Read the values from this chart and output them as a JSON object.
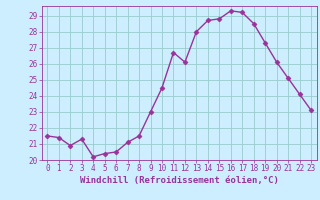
{
  "x": [
    0,
    1,
    2,
    3,
    4,
    5,
    6,
    7,
    8,
    9,
    10,
    11,
    12,
    13,
    14,
    15,
    16,
    17,
    18,
    19,
    20,
    21,
    22,
    23
  ],
  "y": [
    21.5,
    21.4,
    20.9,
    21.3,
    20.2,
    20.4,
    20.5,
    21.1,
    21.5,
    23.0,
    24.5,
    26.7,
    26.1,
    28.0,
    28.7,
    28.8,
    29.3,
    29.2,
    28.5,
    27.3,
    26.1,
    25.1,
    24.1,
    23.1
  ],
  "line_color": "#993399",
  "marker": "D",
  "marker_size": 2.5,
  "bg_color": "#cceeff",
  "grid_color": "#99cccc",
  "xlabel": "Windchill (Refroidissement éolien,°C)",
  "xlabel_color": "#993399",
  "ylim": [
    20,
    29.6
  ],
  "xlim": [
    -0.5,
    23.5
  ],
  "yticks": [
    20,
    21,
    22,
    23,
    24,
    25,
    26,
    27,
    28,
    29
  ],
  "xticks": [
    0,
    1,
    2,
    3,
    4,
    5,
    6,
    7,
    8,
    9,
    10,
    11,
    12,
    13,
    14,
    15,
    16,
    17,
    18,
    19,
    20,
    21,
    22,
    23
  ],
  "tick_color": "#993399",
  "tick_fontsize": 5.5,
  "xlabel_fontsize": 6.5,
  "linewidth": 1.0
}
